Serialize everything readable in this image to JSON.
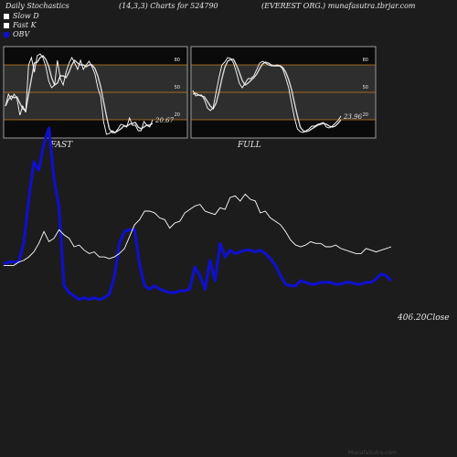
{
  "header": {
    "title": "Daily Stochastics",
    "params": "(14,3,3) Charts for 524790",
    "site": "(EVEREST ORG.) munafasutra.tbrjar.com"
  },
  "legend": [
    {
      "label": "Slow  D",
      "color": "#ffffff"
    },
    {
      "label": "Fast  K",
      "color": "#ffffff"
    },
    {
      "label": "OBV",
      "color": "#1010c8"
    }
  ],
  "watermark": "MunafaSutra.com",
  "colors": {
    "background": "#1c1c1c",
    "panel": "#0a0a0a",
    "band": "#2e2e2e",
    "levels": "#c87e1e",
    "obv": "#1010c8",
    "price": "#ffffff"
  },
  "chart_data": [
    {
      "type": "line",
      "title": "FAST",
      "ylim": [
        0,
        100
      ],
      "yticks": [
        20,
        50,
        80
      ],
      "end_label": "20.67",
      "series": [
        {
          "name": "Fast K",
          "values": [
            35,
            48,
            42,
            48,
            43,
            25,
            35,
            28,
            80,
            88,
            72,
            90,
            92,
            88,
            78,
            62,
            55,
            58,
            85,
            65,
            58,
            72,
            82,
            88,
            82,
            75,
            85,
            75,
            80,
            84,
            78,
            70,
            55,
            45,
            18,
            4,
            5,
            8,
            6,
            10,
            15,
            14,
            12,
            22,
            14,
            14,
            8,
            8,
            18,
            14,
            12,
            20
          ]
        },
        {
          "name": "Slow D",
          "values": [
            35,
            42,
            46,
            44,
            45,
            38,
            32,
            30,
            48,
            65,
            82,
            83,
            88,
            90,
            86,
            78,
            66,
            58,
            60,
            68,
            68,
            66,
            72,
            80,
            85,
            82,
            80,
            80,
            78,
            80,
            80,
            76,
            68,
            56,
            40,
            24,
            10,
            6,
            6,
            8,
            10,
            13,
            13,
            15,
            16,
            17,
            12,
            10,
            12,
            14,
            14,
            16
          ]
        }
      ]
    },
    {
      "type": "line",
      "title": "FULL",
      "ylim": [
        0,
        100
      ],
      "yticks": [
        20,
        50,
        80
      ],
      "end_label": "23.96",
      "series": [
        {
          "name": "Fast K",
          "values": [
            52,
            46,
            47,
            47,
            42,
            33,
            30,
            33,
            50,
            66,
            80,
            83,
            88,
            87,
            82,
            72,
            60,
            55,
            60,
            65,
            65,
            68,
            75,
            82,
            84,
            82,
            80,
            79,
            79,
            80,
            79,
            75,
            66,
            55,
            38,
            22,
            10,
            7,
            6,
            8,
            10,
            13,
            13,
            15,
            16,
            17,
            12,
            11,
            13,
            16,
            19,
            24
          ]
        },
        {
          "name": "Slow D",
          "values": [
            48,
            49,
            47,
            46,
            45,
            40,
            35,
            32,
            38,
            50,
            65,
            77,
            84,
            86,
            86,
            80,
            72,
            63,
            58,
            60,
            63,
            66,
            70,
            76,
            81,
            83,
            82,
            80,
            79,
            79,
            79,
            77,
            72,
            64,
            53,
            38,
            24,
            12,
            8,
            7,
            8,
            10,
            12,
            14,
            15,
            16,
            15,
            13,
            12,
            13,
            16,
            20
          ]
        }
      ]
    },
    {
      "type": "line",
      "title": "",
      "close_label": "406.20Close",
      "series": [
        {
          "name": "Price",
          "values": [
            419,
            419,
            419,
            421,
            422,
            424,
            427,
            432,
            439,
            433,
            435,
            440,
            437,
            435,
            430,
            431,
            428,
            426,
            427,
            424,
            424,
            423,
            424,
            426,
            429,
            436,
            443,
            446,
            451,
            451,
            450,
            447,
            446,
            441,
            444,
            445,
            450,
            452,
            454,
            455,
            451,
            450,
            449,
            453,
            452,
            459,
            460,
            457,
            461,
            458,
            457,
            450,
            451,
            447,
            445,
            443,
            439,
            434,
            431,
            430,
            431,
            433,
            432,
            432,
            430,
            430,
            431,
            429,
            428,
            427,
            426,
            426,
            429,
            428,
            427,
            428,
            429,
            430
          ]
        },
        {
          "name": "OBV",
          "values": [
            420,
            421,
            421,
            421,
            432,
            458,
            480,
            475,
            491,
            500,
            470,
            453,
            407,
            403,
            401,
            399,
            400,
            399,
            400,
            399,
            400,
            402,
            412,
            432,
            439,
            440,
            440,
            420,
            407,
            405,
            407,
            405,
            404,
            403,
            403,
            404,
            404,
            405,
            418,
            413,
            405,
            422,
            410,
            432,
            424,
            428,
            426,
            427,
            428,
            428,
            427,
            428,
            426,
            423,
            419,
            413,
            408,
            407,
            407,
            410,
            409,
            408,
            408,
            409,
            409,
            409,
            408,
            408,
            409,
            409,
            408,
            408,
            409,
            409,
            411,
            414,
            413,
            410
          ]
        }
      ]
    }
  ]
}
